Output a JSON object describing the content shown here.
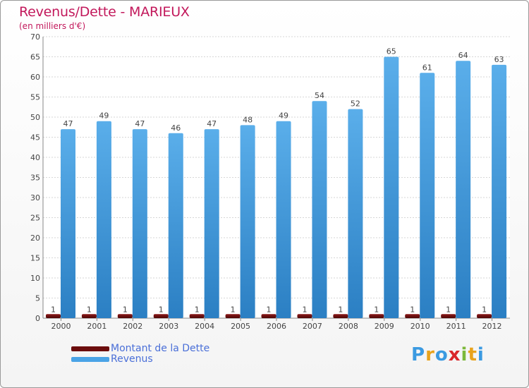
{
  "header": {
    "title": "Revenus/Dette - MARIEUX",
    "subtitle": "(en milliers d'€)"
  },
  "chart_data": {
    "type": "bar",
    "title": "Revenus/Dette - MARIEUX",
    "ylabel": "(en milliers d'€)",
    "xlabel": "",
    "categories": [
      "2000",
      "2001",
      "2002",
      "2003",
      "2004",
      "2005",
      "2006",
      "2007",
      "2008",
      "2009",
      "2010",
      "2011",
      "2012"
    ],
    "series": [
      {
        "name": "Montant de la Dette",
        "color": "#6b0d0d",
        "values": [
          1,
          1,
          1,
          1,
          1,
          1,
          1,
          1,
          1,
          1,
          1,
          1,
          1
        ]
      },
      {
        "name": "Revenus",
        "color": "#4aa3e6",
        "values": [
          47,
          49,
          47,
          46,
          47,
          48,
          49,
          54,
          52,
          65,
          61,
          64,
          63
        ]
      }
    ],
    "ylim": [
      0,
      70
    ],
    "yticks": [
      0,
      5,
      10,
      15,
      20,
      25,
      30,
      35,
      40,
      45,
      50,
      55,
      60,
      65,
      70
    ],
    "grid": true,
    "legend": "bottom-left"
  },
  "legend": {
    "items": [
      {
        "label": "Montant de la Dette",
        "color": "#6b0d0d"
      },
      {
        "label": "Revenus",
        "color": "#4aa3e6"
      }
    ]
  },
  "logo": {
    "letters": [
      "P",
      "r",
      "o",
      "x",
      "i",
      "t",
      "i"
    ],
    "colors": [
      "#3b9ae1",
      "#e8a31c",
      "#3b9ae1",
      "#d9262a",
      "#7cb83a",
      "#e8a31c",
      "#3b9ae1"
    ]
  }
}
